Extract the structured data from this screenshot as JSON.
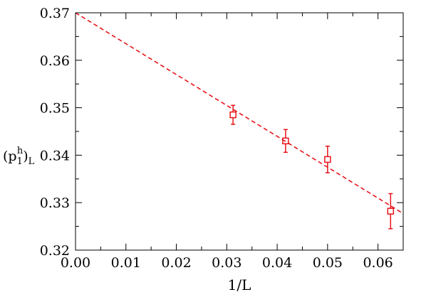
{
  "chart_data": {
    "type": "scatter",
    "title": "",
    "xlabel": "1/L",
    "ylabel": {
      "base": "(p",
      "sub1": "1",
      "sup": "h",
      "close": ")",
      "sub2": "L"
    },
    "xlim": [
      0.0,
      0.065
    ],
    "ylim": [
      0.32,
      0.37
    ],
    "x_ticks": [
      "0.00",
      "0.01",
      "0.02",
      "0.03",
      "0.04",
      "0.05",
      "0.06"
    ],
    "x_tick_values": [
      0.0,
      0.01,
      0.02,
      0.03,
      0.04,
      0.05,
      0.06
    ],
    "y_ticks": [
      "0.32",
      "0.33",
      "0.34",
      "0.35",
      "0.36",
      "0.37"
    ],
    "y_tick_values": [
      0.32,
      0.33,
      0.34,
      0.35,
      0.36,
      0.37
    ],
    "grid": false,
    "series": [
      {
        "style": "points-with-errorbars",
        "marker": "open-square",
        "color": "#e8141a",
        "points": [
          {
            "x": 0.03125,
            "y": 0.3485,
            "err": 0.002
          },
          {
            "x": 0.04167,
            "y": 0.343,
            "err": 0.0024
          },
          {
            "x": 0.05,
            "y": 0.3391,
            "err": 0.0028
          },
          {
            "x": 0.0625,
            "y": 0.3282,
            "err": 0.0037
          }
        ]
      },
      {
        "style": "dashed-line",
        "color": "#e8141a",
        "fit": {
          "x": [
            0.0,
            0.065
          ],
          "y": [
            0.37,
            0.3277
          ]
        }
      }
    ]
  }
}
